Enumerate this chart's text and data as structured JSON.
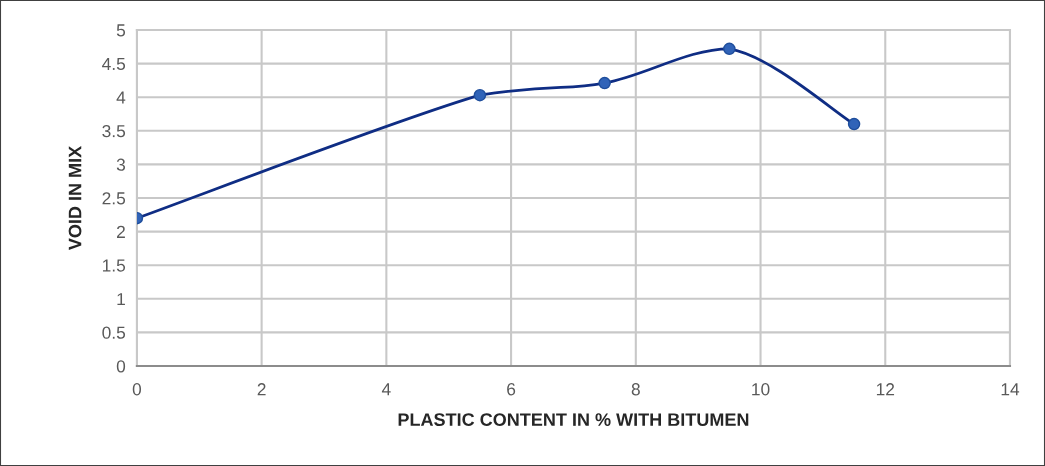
{
  "chart_data": {
    "type": "line",
    "xlabel": "PLASTIC CONTENT IN % WITH BITUMEN",
    "ylabel": "VOID IN MIX",
    "x": [
      0,
      5.5,
      7.5,
      9.5,
      11.5
    ],
    "series": [
      {
        "color": "#0f2d84",
        "values": [
          2.2,
          4.03,
          4.21,
          4.72,
          3.6
        ]
      }
    ],
    "xlim": [
      0,
      14
    ],
    "xticks": [
      0,
      2,
      4,
      6,
      8,
      10,
      12,
      14
    ],
    "ylim": [
      0,
      5
    ],
    "yticks": [
      0,
      0.5,
      1,
      1.5,
      2,
      2.5,
      3,
      3.5,
      4,
      4.5,
      5
    ],
    "grid": true,
    "marker": "circle",
    "line_style": "solid"
  }
}
